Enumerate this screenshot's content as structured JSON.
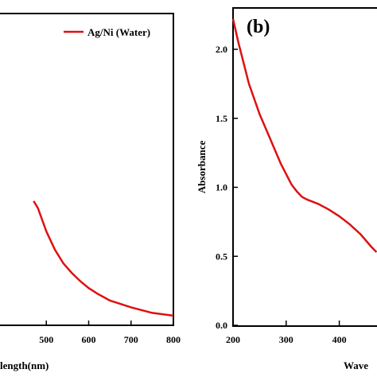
{
  "chart_data": [
    {
      "type": "line",
      "panel_label": "",
      "xlabel": "length(nm)",
      "ylabel": "",
      "xlim": [
        400,
        800
      ],
      "ylim": [
        0,
        2.3
      ],
      "x_ticks": [
        500,
        600,
        700,
        800
      ],
      "x_tick_labels": [
        "500",
        "600",
        "700",
        "800"
      ],
      "legend": {
        "position": "top-right",
        "entries": [
          "Ag/Ni (Water)"
        ]
      },
      "series": [
        {
          "name": "Ag/Ni (Water)",
          "color": "#dd1111",
          "x": [
            470,
            480,
            500,
            520,
            540,
            560,
            580,
            600,
            620,
            650,
            700,
            750,
            800
          ],
          "y": [
            0.9,
            0.85,
            0.68,
            0.55,
            0.45,
            0.38,
            0.32,
            0.27,
            0.23,
            0.18,
            0.13,
            0.09,
            0.07
          ]
        }
      ]
    },
    {
      "type": "line",
      "panel_label": "(b)",
      "xlabel": "Wave",
      "ylabel": "Absorbance",
      "xlim": [
        200,
        470
      ],
      "ylim": [
        0,
        2.3
      ],
      "x_ticks": [
        200,
        300,
        400
      ],
      "x_tick_labels": [
        "200",
        "300",
        "400"
      ],
      "y_ticks": [
        0,
        0.5,
        1,
        1.5,
        2
      ],
      "y_tick_labels": [
        "0.0",
        "0.5",
        "1.0",
        "1.5",
        "2.0"
      ],
      "series": [
        {
          "name": "",
          "color": "#dd1111",
          "x": [
            200,
            210,
            230,
            250,
            270,
            290,
            310,
            320,
            330,
            340,
            360,
            380,
            400,
            420,
            440,
            460,
            470
          ],
          "y": [
            2.22,
            2.05,
            1.75,
            1.53,
            1.35,
            1.17,
            1.02,
            0.97,
            0.93,
            0.91,
            0.88,
            0.84,
            0.79,
            0.73,
            0.66,
            0.57,
            0.53
          ]
        }
      ]
    }
  ]
}
